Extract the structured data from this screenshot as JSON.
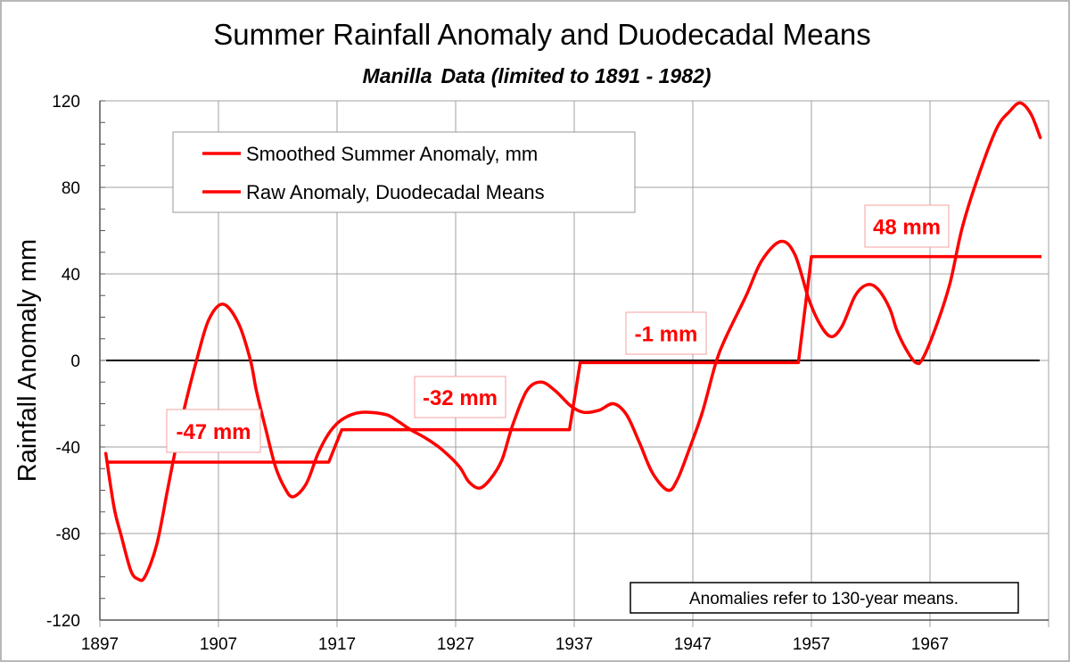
{
  "chart_data": {
    "type": "line",
    "title": "Summer Rainfall Anomaly and Duodecadal Means",
    "subtitle_place": "Manilla",
    "subtitle_rest": "Data (limited to 1891 -  1982)",
    "ylabel": "Rainfall Anomaly mm",
    "xlabel": "",
    "xlim": [
      1897,
      1977
    ],
    "ylim": [
      -120,
      120
    ],
    "xticks": [
      1897,
      1907,
      1917,
      1927,
      1937,
      1947,
      1957,
      1967
    ],
    "yticks": [
      -120,
      -80,
      -40,
      0,
      40,
      80,
      120
    ],
    "grid": true,
    "legend_position": "top-left",
    "note": "Anomalies refer to 130-year means.",
    "colors": {
      "series": "#ff0000",
      "zero_line": "#000000",
      "grid": "#a0a0a0"
    },
    "series": [
      {
        "name": "Smoothed Summer Anomaly, mm",
        "x": [
          1897.5,
          1898.2,
          1898.8,
          1899.6,
          1900.2,
          1900.8,
          1901.8,
          1902.7,
          1903.2,
          1904.0,
          1905.2,
          1906.2,
          1907.4,
          1908.7,
          1909.7,
          1910.2,
          1911.0,
          1911.8,
          1912.6,
          1913.3,
          1914.4,
          1915.4,
          1916.4,
          1917.5,
          1919.0,
          1921.1,
          1922.1,
          1923.2,
          1924.5,
          1925.8,
          1927.3,
          1928.1,
          1929.0,
          1929.9,
          1930.9,
          1931.8,
          1933.0,
          1934.2,
          1935.4,
          1936.7,
          1937.8,
          1939.1,
          1940.3,
          1941.4,
          1942.5,
          1943.6,
          1944.9,
          1945.7,
          1946.7,
          1947.8,
          1949.0,
          1949.9,
          1951.5,
          1952.8,
          1954.4,
          1955.6,
          1956.8,
          1957.8,
          1958.7,
          1959.6,
          1960.7,
          1961.7,
          1962.6,
          1963.6,
          1964.2,
          1965.0,
          1965.8,
          1966.4,
          1967.6,
          1968.7,
          1969.7,
          1971.0,
          1972.6,
          1973.7,
          1974.6,
          1975.5,
          1976.3
        ],
        "y": [
          -43,
          -68,
          -81,
          -97,
          -101,
          -100,
          -85,
          -60,
          -46,
          -25,
          1,
          19,
          26,
          17,
          0,
          -14,
          -32,
          -49,
          -59,
          -63,
          -57,
          -43,
          -33,
          -27,
          -24,
          -25,
          -28,
          -32,
          -36,
          -41,
          -49,
          -56,
          -59,
          -55,
          -46,
          -30,
          -14,
          -10,
          -14,
          -21,
          -24,
          -23,
          -20,
          -25,
          -38,
          -52,
          -60,
          -55,
          -41,
          -24,
          0,
          12,
          30,
          46,
          55,
          49,
          28,
          16,
          11,
          16,
          30,
          35,
          33,
          24,
          14,
          5,
          -1,
          1,
          17,
          36,
          61,
          84,
          107,
          115,
          119,
          114,
          103
        ]
      },
      {
        "name": "Raw Anomaly, Duodecadal Means",
        "steps": [
          {
            "start": 1897.5,
            "end": 1916.3,
            "value": -47,
            "label": "-47 mm"
          },
          {
            "start": 1917.4,
            "end": 1936.6,
            "value": -32,
            "label": "-32 mm"
          },
          {
            "start": 1937.5,
            "end": 1955.9,
            "value": -1,
            "label": "-1 mm"
          },
          {
            "start": 1957.0,
            "end": 1976.4,
            "value": 48,
            "label": "48 mm"
          }
        ]
      }
    ]
  }
}
